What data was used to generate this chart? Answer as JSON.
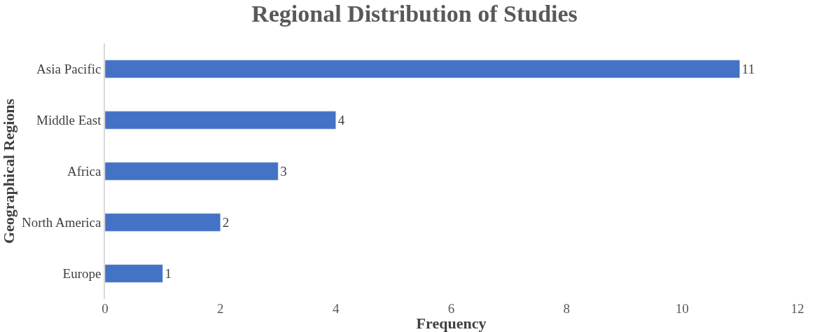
{
  "chart_data": {
    "type": "bar",
    "orientation": "horizontal",
    "title": "Regional Distribution of Studies",
    "xlabel": "Frequency",
    "ylabel": "Geographical Regions",
    "categories": [
      "Asia Pacific",
      "Middle East",
      "Africa",
      "North America",
      "Europe"
    ],
    "values": [
      11,
      4,
      3,
      2,
      1
    ],
    "color": "#4472c4",
    "xlim": [
      0,
      12
    ],
    "xticks": [
      0,
      2,
      4,
      6,
      8,
      10,
      12
    ],
    "legend": false,
    "data_labels": true
  }
}
